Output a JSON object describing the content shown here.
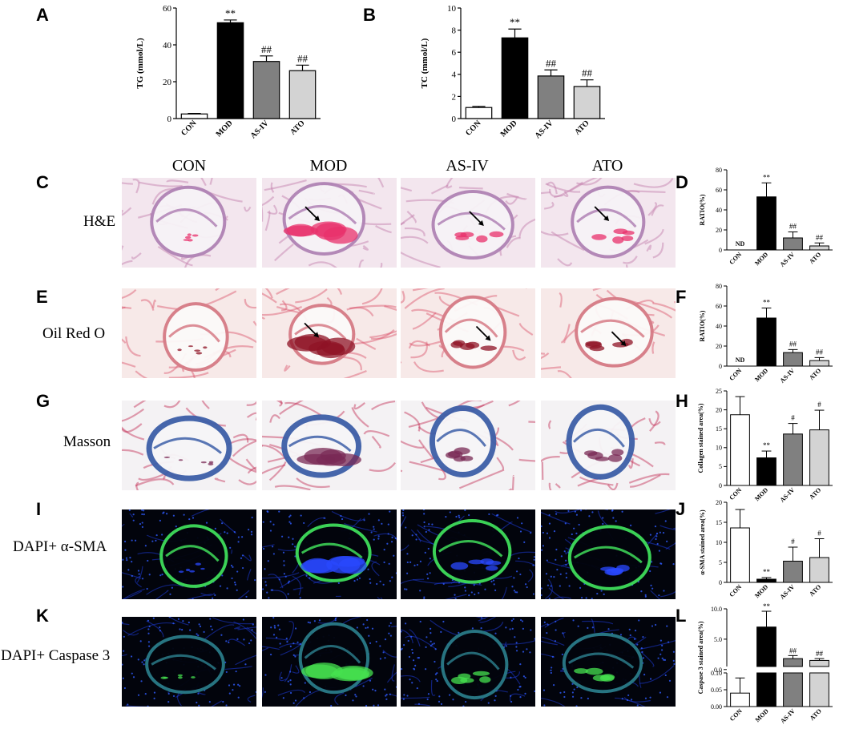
{
  "panel_letters": [
    "A",
    "B",
    "C",
    "D",
    "E",
    "F",
    "G",
    "H",
    "I",
    "J",
    "K",
    "L"
  ],
  "column_headers": [
    "CON",
    "MOD",
    "AS-IV",
    "ATO"
  ],
  "row_labels": [
    "H&E",
    "Oil Red O",
    "Masson",
    "DAPI+ α-SMA",
    "DAPI+ Caspase 3"
  ],
  "image_kinds": [
    "he",
    "oil",
    "masson",
    "sma",
    "casp"
  ],
  "chart_data": [
    {
      "id": "A",
      "type": "bar",
      "categories": [
        "CON",
        "MOD",
        "AS-IV",
        "ATO"
      ],
      "values": [
        2.5,
        52,
        31,
        26
      ],
      "errors": [
        0.3,
        1.5,
        3,
        3
      ],
      "annotations": [
        "",
        "**",
        "##",
        "##"
      ],
      "ylabel": "TG (mmol/L)",
      "ylim": [
        0,
        60
      ],
      "yticks": [
        0,
        20,
        40,
        60
      ],
      "fills": [
        "#ffffff",
        "#000000",
        "#808080",
        "#d3d3d3"
      ]
    },
    {
      "id": "B",
      "type": "bar",
      "categories": [
        "CON",
        "MOD",
        "AS-IV",
        "ATO"
      ],
      "values": [
        1.0,
        7.3,
        3.85,
        2.9
      ],
      "errors": [
        0.1,
        0.8,
        0.55,
        0.6
      ],
      "annotations": [
        "",
        "**",
        "##",
        "##"
      ],
      "ylabel": "TC (mmol/L)",
      "ylim": [
        0,
        10
      ],
      "yticks": [
        0,
        2,
        4,
        6,
        8,
        10
      ],
      "fills": [
        "#ffffff",
        "#000000",
        "#808080",
        "#d3d3d3"
      ]
    },
    {
      "id": "D",
      "type": "bar",
      "categories": [
        "CON",
        "MOD",
        "AS-IV",
        "ATO"
      ],
      "values": [
        0,
        53,
        12,
        4
      ],
      "errors": [
        0,
        14,
        6,
        3
      ],
      "annotations": [
        "ND",
        "**",
        "##",
        "##"
      ],
      "ylabel": "RATIO(%)",
      "ylim": [
        0,
        80
      ],
      "yticks": [
        0,
        20,
        40,
        60,
        80
      ],
      "fills": [
        "#ffffff",
        "#000000",
        "#808080",
        "#d3d3d3"
      ]
    },
    {
      "id": "F",
      "type": "bar",
      "categories": [
        "CON",
        "MOD",
        "AS-IV",
        "ATO"
      ],
      "values": [
        0,
        48,
        13.5,
        5.5
      ],
      "errors": [
        0,
        10,
        3,
        3
      ],
      "annotations": [
        "ND",
        "**",
        "##",
        "##"
      ],
      "ylabel": "RATIO(%)",
      "ylim": [
        0,
        80
      ],
      "yticks": [
        0,
        20,
        40,
        60,
        80
      ],
      "fills": [
        "#ffffff",
        "#000000",
        "#808080",
        "#d3d3d3"
      ]
    },
    {
      "id": "H",
      "type": "bar",
      "categories": [
        "CON",
        "MOD",
        "AS-IV",
        "ATO"
      ],
      "values": [
        18.7,
        7.3,
        13.6,
        14.7
      ],
      "errors": [
        4.8,
        1.8,
        2.8,
        5.2
      ],
      "annotations": [
        "",
        "**",
        "#",
        "#"
      ],
      "ylabel": "Collagen stained area(%)",
      "ylim": [
        0,
        25
      ],
      "yticks": [
        0,
        5,
        10,
        15,
        20,
        25
      ],
      "fills": [
        "#ffffff",
        "#000000",
        "#808080",
        "#d3d3d3"
      ]
    },
    {
      "id": "J",
      "type": "bar",
      "categories": [
        "CON",
        "MOD",
        "AS-IV",
        "ATO"
      ],
      "values": [
        13.6,
        0.8,
        5.3,
        6.2
      ],
      "errors": [
        4.6,
        0.4,
        3.5,
        4.7
      ],
      "annotations": [
        "",
        "**",
        "#",
        "#"
      ],
      "ylabel": "α-SMA stained area(%)",
      "ylim": [
        0,
        20
      ],
      "yticks": [
        0,
        5,
        10,
        15,
        20
      ],
      "fills": [
        "#ffffff",
        "#000000",
        "#808080",
        "#d3d3d3"
      ]
    },
    {
      "id": "L",
      "type": "bar",
      "broken_axis": true,
      "categories": [
        "CON",
        "MOD",
        "AS-IV",
        "ATO"
      ],
      "values": [
        0.04,
        7.0,
        1.8,
        1.5
      ],
      "errors": [
        0.045,
        2.6,
        0.5,
        0.3
      ],
      "annotations": [
        "",
        "**",
        "##",
        "##"
      ],
      "ylabel": "Caspase 3 stained area(%)",
      "lower_yticks": [
        "0.00",
        "0.05",
        "0.10"
      ],
      "upper_yticks": [
        "0.0",
        "5.0",
        "10.0"
      ],
      "lower_range": [
        0,
        0.1
      ],
      "upper_range": [
        0.5,
        10
      ],
      "fills": [
        "#ffffff",
        "#000000",
        "#808080",
        "#d3d3d3"
      ]
    }
  ]
}
